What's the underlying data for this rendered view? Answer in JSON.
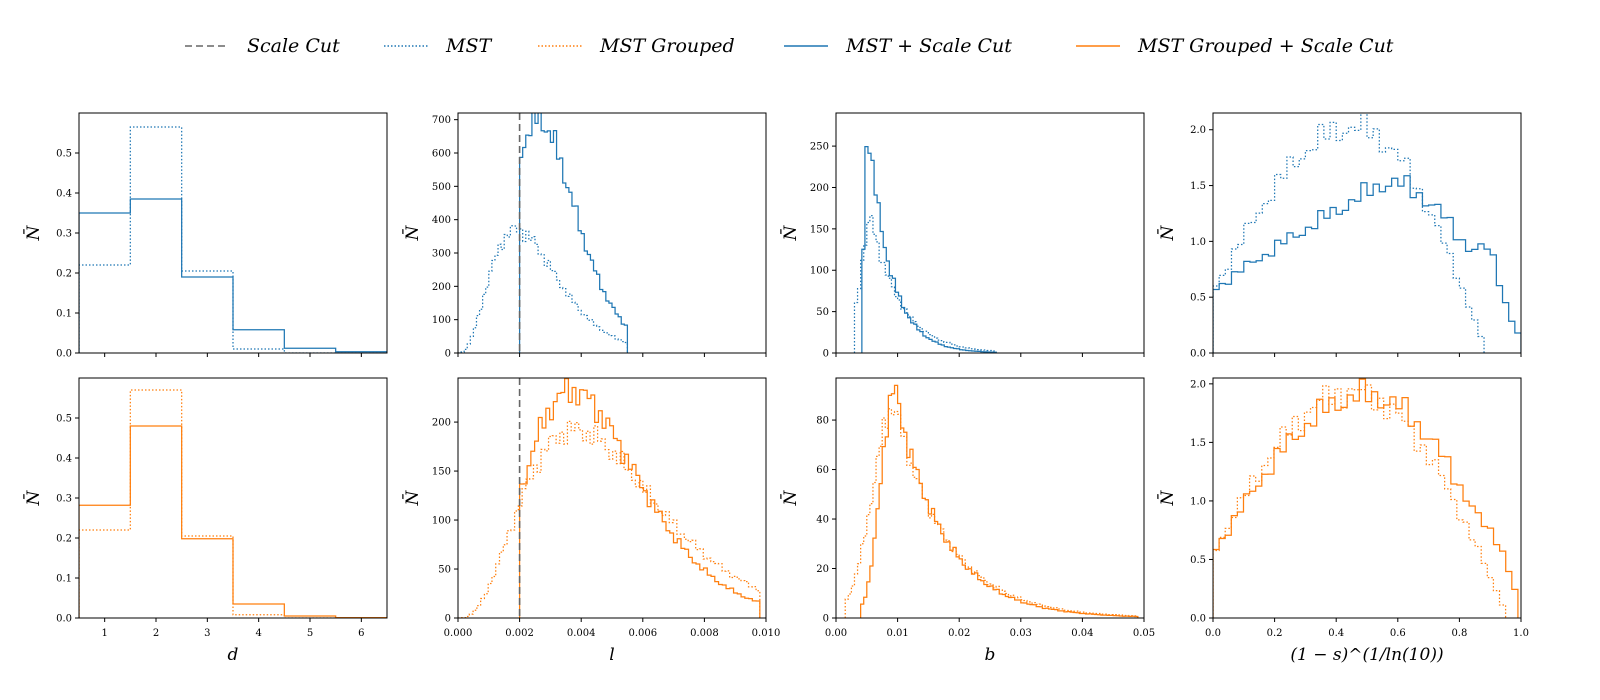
{
  "colors": {
    "blue": "#1f77b4",
    "orange": "#ff7f0e",
    "cut": "#666666"
  },
  "legend": {
    "items": [
      {
        "label": "Scale Cut",
        "color": "#666666",
        "style": "dashed"
      },
      {
        "label": "MST",
        "color": "#1f77b4",
        "style": "dotted"
      },
      {
        "label": "MST Grouped",
        "color": "#ff7f0e",
        "style": "dotted"
      },
      {
        "label": "MST + Scale Cut",
        "color": "#1f77b4",
        "style": "solid"
      },
      {
        "label": "MST Grouped + Scale Cut",
        "color": "#ff7f0e",
        "style": "solid"
      }
    ]
  },
  "chart_data": [
    {
      "type": "histogram",
      "row": 0,
      "col": 0,
      "color": "#1f77b4",
      "xlim": [
        0.5,
        6.5
      ],
      "ylim": [
        0,
        0.6
      ],
      "yticks": [
        0,
        0.1,
        0.2,
        0.3,
        0.4,
        0.5
      ],
      "xticks": [
        1,
        2,
        3,
        4,
        5,
        6
      ],
      "show_xticks": false,
      "xlabel": "",
      "ylabel": "N̄",
      "dotted": {
        "edges": [
          0.5,
          1.5,
          2.5,
          3.5,
          4.5,
          5.5,
          6.5
        ],
        "values": [
          0.22,
          0.565,
          0.205,
          0.01,
          0.0,
          0.0
        ]
      },
      "solid": {
        "edges": [
          0.5,
          1.5,
          2.5,
          3.5,
          4.5,
          5.5,
          6.5
        ],
        "values": [
          0.35,
          0.385,
          0.19,
          0.058,
          0.012,
          0.003
        ]
      }
    },
    {
      "type": "histogram",
      "row": 0,
      "col": 1,
      "color": "#1f77b4",
      "xlim": [
        0,
        0.01
      ],
      "ylim": [
        0,
        720
      ],
      "yticks": [
        0,
        100,
        200,
        300,
        400,
        500,
        600,
        700
      ],
      "xticks": [
        0,
        0.002,
        0.004,
        0.006,
        0.008,
        0.01
      ],
      "show_xticks": false,
      "xlabel": "",
      "ylabel": "N̄",
      "cut": 0.002,
      "dotted": {
        "kind": "gamma",
        "lo": 0.0,
        "hi": 0.0055,
        "n": 55,
        "k": 3.0,
        "peak": 0.0019,
        "amp": 370
      },
      "solid": {
        "kind": "gamma",
        "lo": 0.002,
        "hi": 0.0055,
        "n": 35,
        "k": 6.0,
        "peak": 0.0026,
        "amp": 700
      }
    },
    {
      "type": "histogram",
      "row": 0,
      "col": 2,
      "color": "#1f77b4",
      "xlim": [
        0,
        0.05
      ],
      "ylim": [
        0,
        290
      ],
      "yticks": [
        0,
        50,
        100,
        150,
        200,
        250
      ],
      "xticks": [
        0,
        0.01,
        0.02,
        0.03,
        0.04,
        0.05
      ],
      "show_xticks": false,
      "xlabel": "",
      "ylabel": "N̄",
      "dotted": {
        "kind": "skewed",
        "lo": 0.003,
        "hi": 0.026,
        "n": 46,
        "peak": 0.0058,
        "amp": 160,
        "rise": 0.0018,
        "decay": 0.0048
      },
      "solid": {
        "kind": "skewed",
        "lo": 0.0042,
        "hi": 0.026,
        "n": 44,
        "peak": 0.0052,
        "amp": 275,
        "rise": 0.0006,
        "decay": 0.0036
      }
    },
    {
      "type": "histogram",
      "row": 0,
      "col": 3,
      "color": "#1f77b4",
      "xlim": [
        0,
        1
      ],
      "ylim": [
        0,
        2.15
      ],
      "yticks": [
        0,
        0.5,
        1.0,
        1.5,
        2.0
      ],
      "xticks": [
        0,
        0.2,
        0.4,
        0.6,
        0.8,
        1.0
      ],
      "show_xticks": false,
      "xlabel": "",
      "ylabel": "N̄",
      "dotted": {
        "kind": "hump",
        "lo": 0.0,
        "hi": 0.88,
        "n": 44,
        "start": 0.55,
        "peak": 0.46,
        "amp": 2.02,
        "tail": 0.07
      },
      "solid": {
        "kind": "plateau",
        "lo": 0.0,
        "hi": 1.0,
        "n": 50,
        "start": 0.55,
        "peak": 0.56,
        "amp": 1.53,
        "end": 0.12,
        "bump": 0.9,
        "bumpAmp": 0.88
      }
    },
    {
      "type": "histogram",
      "row": 1,
      "col": 0,
      "color": "#ff7f0e",
      "xlim": [
        0.5,
        6.5
      ],
      "ylim": [
        0,
        0.6
      ],
      "yticks": [
        0,
        0.1,
        0.2,
        0.3,
        0.4,
        0.5
      ],
      "xticks": [
        1,
        2,
        3,
        4,
        5,
        6
      ],
      "show_xticks": true,
      "xlabel": "d",
      "ylabel": "N̄",
      "dotted": {
        "edges": [
          0.5,
          1.5,
          2.5,
          3.5,
          4.5,
          5.5,
          6.5
        ],
        "values": [
          0.22,
          0.57,
          0.205,
          0.008,
          0.0,
          0.0
        ]
      },
      "solid": {
        "edges": [
          0.5,
          1.5,
          2.5,
          3.5,
          4.5,
          5.5,
          6.5
        ],
        "values": [
          0.282,
          0.48,
          0.198,
          0.035,
          0.005,
          0.001
        ]
      }
    },
    {
      "type": "histogram",
      "row": 1,
      "col": 1,
      "color": "#ff7f0e",
      "xlim": [
        0,
        0.01
      ],
      "ylim": [
        0,
        245
      ],
      "yticks": [
        0,
        50,
        100,
        150,
        200
      ],
      "xticks": [
        0,
        0.002,
        0.004,
        0.006,
        0.008,
        0.01
      ],
      "show_xticks": true,
      "xlabel": "l",
      "ylabel": "N̄",
      "cut": 0.002,
      "dotted": {
        "kind": "gamma",
        "lo": 0.0,
        "hi": 0.0098,
        "n": 80,
        "k": 3.0,
        "peak": 0.0038,
        "amp": 192
      },
      "solid": {
        "kind": "gamma",
        "lo": 0.002,
        "hi": 0.0098,
        "n": 64,
        "k": 4.0,
        "peak": 0.0037,
        "amp": 232
      }
    },
    {
      "type": "histogram",
      "row": 1,
      "col": 2,
      "color": "#ff7f0e",
      "xlim": [
        0,
        0.05
      ],
      "ylim": [
        0,
        97
      ],
      "yticks": [
        0,
        20,
        40,
        60,
        80
      ],
      "xticks": [
        0,
        0.01,
        0.02,
        0.03,
        0.04,
        0.05
      ],
      "show_xticks": true,
      "xlabel": "b",
      "ylabel": "N̄",
      "dotted": {
        "kind": "skewed",
        "lo": 0.0015,
        "hi": 0.049,
        "n": 95,
        "peak": 0.0095,
        "amp": 86,
        "rise": 0.0035,
        "decay": 0.0085
      },
      "solid": {
        "kind": "skewed",
        "lo": 0.004,
        "hi": 0.049,
        "n": 90,
        "peak": 0.0095,
        "amp": 93,
        "rise": 0.0022,
        "decay": 0.0078
      }
    },
    {
      "type": "histogram",
      "row": 1,
      "col": 3,
      "color": "#ff7f0e",
      "xlim": [
        0,
        1
      ],
      "ylim": [
        0,
        2.05
      ],
      "yticks": [
        0,
        0.5,
        1.0,
        1.5,
        2.0
      ],
      "xticks": [
        0,
        0.2,
        0.4,
        0.6,
        0.8,
        1.0
      ],
      "show_xticks": true,
      "xlabel": "(1 − s)^(1/ln(10))",
      "ylabel": "N̄",
      "dotted": {
        "kind": "hump",
        "lo": 0.0,
        "hi": 0.95,
        "n": 48,
        "start": 0.55,
        "peak": 0.45,
        "amp": 1.93,
        "tail": 0.06
      },
      "solid": {
        "kind": "hump",
        "lo": 0.0,
        "hi": 0.99,
        "n": 50,
        "start": 0.55,
        "peak": 0.5,
        "amp": 1.9,
        "tail": 0.12,
        "bump": 0.93,
        "bumpAmp": 0.17
      }
    }
  ]
}
